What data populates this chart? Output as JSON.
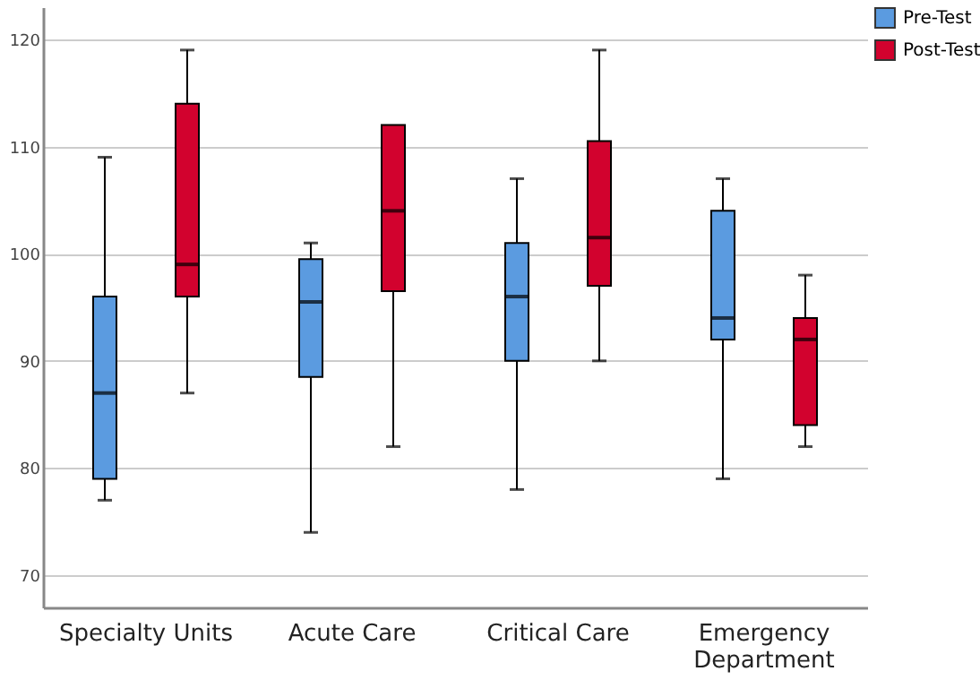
{
  "chart_data": {
    "type": "box",
    "categories": [
      "Specialty Units",
      "Acute Care",
      "Critical Care",
      "Emergency Department"
    ],
    "series": [
      {
        "name": "Pre-Test",
        "color": "#5b9be0",
        "boxes": [
          {
            "low": 77,
            "q1": 79,
            "median": 87,
            "q3": 96,
            "high": 109
          },
          {
            "low": 74,
            "q1": 88.5,
            "median": 95.5,
            "q3": 99.5,
            "high": 101
          },
          {
            "low": 78,
            "q1": 90,
            "median": 96,
            "q3": 101,
            "high": 107
          },
          {
            "low": 79,
            "q1": 92,
            "median": 94,
            "q3": 104,
            "high": 107
          }
        ]
      },
      {
        "name": "Post-Test",
        "color": "#d2022e",
        "boxes": [
          {
            "low": 87,
            "q1": 96,
            "median": 99,
            "q3": 114,
            "high": 119
          },
          {
            "low": 82,
            "q1": 96.5,
            "median": 104,
            "q3": 112,
            "high": 112
          },
          {
            "low": 90,
            "q1": 97,
            "median": 101.5,
            "q3": 110.5,
            "high": 119
          },
          {
            "low": 82,
            "q1": 84,
            "median": 92,
            "q3": 94,
            "high": 98
          }
        ]
      }
    ],
    "ylim": [
      67,
      123
    ],
    "yticks": [
      70,
      80,
      90,
      100,
      110,
      120
    ],
    "grid": "y",
    "legend": "top right"
  }
}
